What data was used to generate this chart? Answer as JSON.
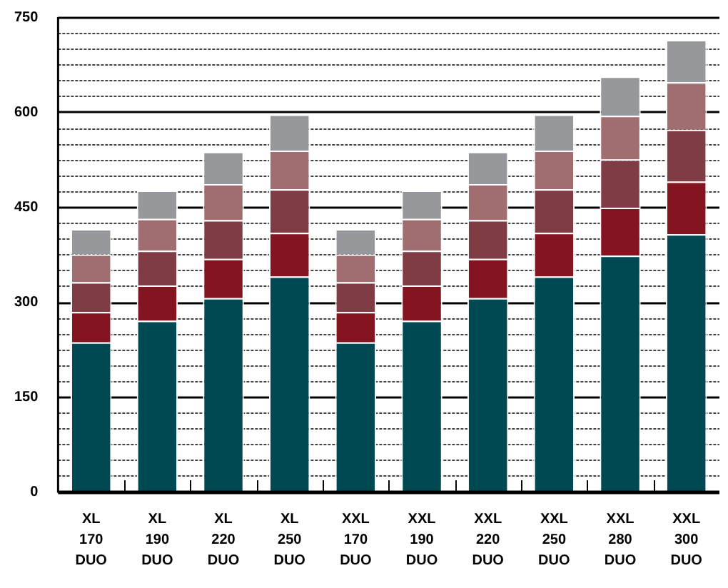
{
  "chart_data": {
    "type": "bar",
    "stacked": true,
    "categories": [
      "XL 170 DUO",
      "XL 190 DUO",
      "XL 220 DUO",
      "XL 250 DUO",
      "XXL 170 DUO",
      "XXL 190 DUO",
      "XXL 220 DUO",
      "XXL 250 DUO",
      "XXL 280 DUO",
      "XXL 300 DUO"
    ],
    "series": [
      {
        "color": "#004953",
        "values": [
          236,
          270,
          306,
          340,
          236,
          270,
          306,
          340,
          373,
          407
        ]
      },
      {
        "color": "#84141f",
        "values": [
          48,
          56,
          62,
          69,
          48,
          56,
          62,
          69,
          76,
          83
        ]
      },
      {
        "color": "#803c44",
        "values": [
          47,
          55,
          61,
          69,
          47,
          55,
          61,
          69,
          76,
          82
        ]
      },
      {
        "color": "#a06e70",
        "values": [
          44,
          50,
          57,
          61,
          44,
          50,
          57,
          61,
          69,
          75
        ]
      },
      {
        "color": "#97989c",
        "values": [
          40,
          45,
          51,
          57,
          40,
          45,
          51,
          57,
          62,
          67
        ]
      }
    ],
    "ylim": [
      0,
      750
    ],
    "yticks": [
      0,
      {
        "value": 25,
        "label": null
      },
      {
        "value": 50,
        "label": null
      },
      {
        "value": 75,
        "label": null
      },
      {
        "value": 100,
        "label": null
      },
      {
        "value": 125,
        "label": null
      },
      150,
      {
        "value": 175,
        "label": null
      },
      {
        "value": 200,
        "label": null
      },
      {
        "value": 225,
        "label": null
      },
      {
        "value": 250,
        "label": null
      },
      {
        "value": 275,
        "label": null
      },
      300,
      {
        "value": 325,
        "label": null
      },
      {
        "value": 350,
        "label": null
      },
      {
        "value": 375,
        "label": null
      },
      {
        "value": 400,
        "label": null
      },
      {
        "value": 425,
        "label": null
      },
      450,
      {
        "value": 475,
        "label": null
      },
      {
        "value": 500,
        "label": null
      },
      {
        "value": 525,
        "label": null
      },
      {
        "value": 550,
        "label": null
      },
      {
        "value": 575,
        "label": null
      },
      600,
      {
        "value": 625,
        "label": null
      },
      {
        "value": 650,
        "label": null
      },
      {
        "value": 675,
        "label": null
      },
      {
        "value": 700,
        "label": null
      },
      {
        "value": 725,
        "label": null
      },
      750
    ],
    "grid": "y",
    "legend": false
  }
}
